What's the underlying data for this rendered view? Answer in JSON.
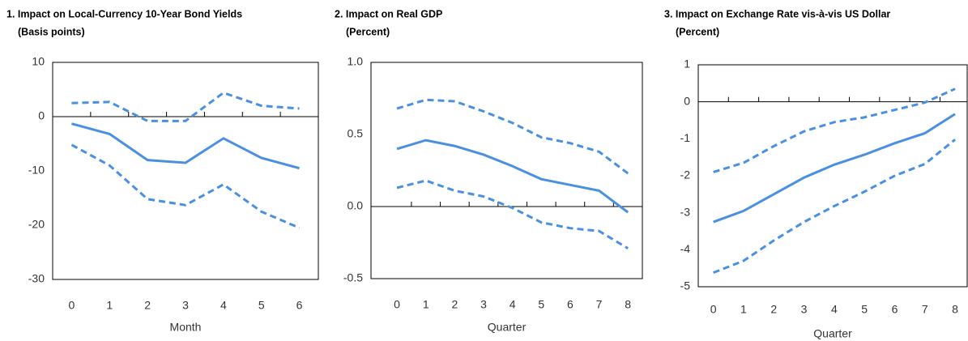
{
  "chart_data": [
    {
      "type": "line",
      "title": "1.  Impact on Local-Currency 10-Year Bond Yields",
      "subtitle": "(Basis points)",
      "xlabel": "Month",
      "x": [
        0,
        1,
        2,
        3,
        4,
        5,
        6
      ],
      "xlim": [
        -0.5,
        6.5
      ],
      "xticks": [
        0,
        1,
        2,
        3,
        4,
        5,
        6
      ],
      "ylim": [
        -30,
        10
      ],
      "yticks": [
        -30,
        -20,
        -10,
        0,
        10
      ],
      "frame": true,
      "series": [
        {
          "color": "#4a90e2",
          "style": "dashed",
          "values": [
            2.5,
            2.7,
            -0.8,
            -0.8,
            4.4,
            2,
            1.5
          ]
        },
        {
          "color": "#4a90e2",
          "style": "solid",
          "values": [
            -1.3,
            -3.2,
            -8,
            -8.5,
            -4,
            -7.6,
            -9.5
          ]
        },
        {
          "color": "#4a90e2",
          "style": "dashed",
          "values": [
            -5.2,
            -9,
            -15.2,
            -16.3,
            -12.5,
            -17.5,
            -20.5
          ]
        }
      ]
    },
    {
      "type": "line",
      "title": "2.  Impact on Real GDP",
      "subtitle": "(Percent)",
      "xlabel": "Quarter",
      "x": [
        0,
        1,
        2,
        3,
        4,
        5,
        6,
        7,
        8
      ],
      "xlim": [
        -0.9,
        8.5
      ],
      "xticks": [
        0,
        1,
        2,
        3,
        4,
        5,
        6,
        7,
        8
      ],
      "ylim": [
        -0.5,
        1.0
      ],
      "yticks": [
        -0.5,
        {
          "value": 0,
          "label": "0.0"
        },
        0.5,
        {
          "value": 1,
          "label": "1.0"
        }
      ],
      "frame": true,
      "series": [
        {
          "color": "#4a90e2",
          "style": "dashed",
          "values": [
            0.68,
            0.74,
            0.73,
            0.66,
            0.58,
            0.48,
            0.44,
            0.38,
            0.23
          ]
        },
        {
          "color": "#4a90e2",
          "style": "solid",
          "values": [
            0.4,
            0.46,
            0.42,
            0.36,
            0.28,
            0.19,
            0.15,
            0.11,
            -0.04
          ]
        },
        {
          "color": "#4a90e2",
          "style": "dashed",
          "values": [
            0.13,
            0.18,
            0.11,
            0.07,
            -0.01,
            -0.11,
            -0.15,
            -0.17,
            -0.29
          ]
        }
      ]
    },
    {
      "type": "line",
      "title": "3.  Impact on Exchange Rate vis-à-vis US Dollar",
      "subtitle": "(Percent)",
      "xlabel": "Quarter",
      "x": [
        0,
        1,
        2,
        3,
        4,
        5,
        6,
        7,
        8
      ],
      "xlim": [
        -0.5,
        8.4
      ],
      "xticks": [
        0,
        1,
        2,
        3,
        4,
        5,
        6,
        7,
        8
      ],
      "ylim": [
        -5,
        1
      ],
      "yticks": [
        -5,
        -4,
        -3,
        -2,
        -1,
        0,
        1
      ],
      "frame": true,
      "series": [
        {
          "color": "#4a90e2",
          "style": "dashed",
          "values": [
            -1.9,
            -1.65,
            -1.2,
            -0.8,
            -0.55,
            -0.42,
            -0.22,
            -0.02,
            0.35
          ]
        },
        {
          "color": "#4a90e2",
          "style": "solid",
          "values": [
            -3.25,
            -2.95,
            -2.5,
            -2.05,
            -1.7,
            -1.43,
            -1.12,
            -0.85,
            -0.33
          ]
        },
        {
          "color": "#4a90e2",
          "style": "dashed",
          "values": [
            -4.62,
            -4.3,
            -3.75,
            -3.25,
            -2.82,
            -2.43,
            -2,
            -1.68,
            -1.02
          ]
        }
      ]
    }
  ]
}
